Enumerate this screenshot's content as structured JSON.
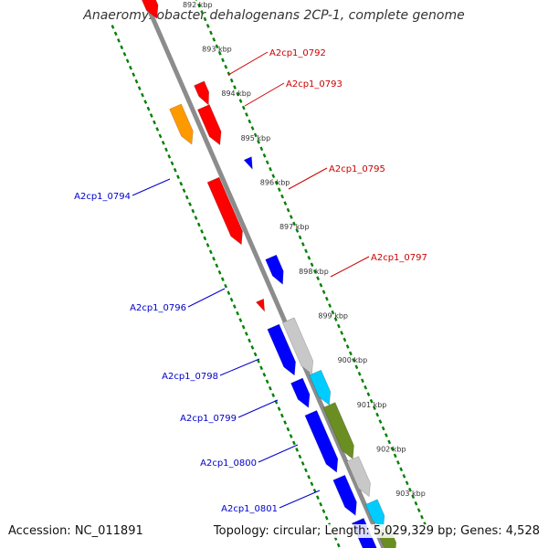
{
  "title": "Anaeromyxobacter dehalogenans 2CP-1, complete genome",
  "footer": {
    "accession": "Accession: NC_011891",
    "summary": "Topology: circular; Length: 5,029,329 bp; Genes: 4,528"
  },
  "colors": {
    "red": "#ff0000",
    "orange": "#ff9900",
    "blue": "#0000ff",
    "gray": "#c8c8c8",
    "cyan": "#00ccff",
    "olive": "#6b8e23",
    "tick": "#008000",
    "backbone": "#8c8c8c",
    "label_red": "#cc0000",
    "label_blue": "#0000cc"
  },
  "kbp_labels": [
    "892 kbp",
    "893 kbp",
    "894 kbp",
    "895 kbp",
    "896 kbp",
    "897 kbp",
    "898 kbp",
    "899 kbp",
    "900 kbp",
    "901 kbp",
    "902 kbp",
    "903 kbp"
  ],
  "gene_labels": [
    "A2cp1_0792",
    "A2cp1_0793",
    "A2cp1_0794",
    "A2cp1_0795",
    "A2cp1_0796",
    "A2cp1_0797",
    "A2cp1_0798",
    "A2cp1_0799",
    "A2cp1_0800",
    "A2cp1_0801"
  ]
}
